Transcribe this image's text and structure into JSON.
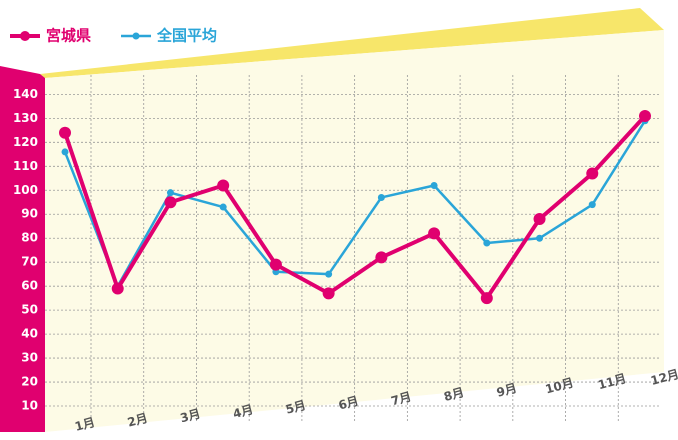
{
  "chart_data": {
    "type": "line",
    "categories": [
      "1月",
      "2月",
      "3月",
      "4月",
      "5月",
      "6月",
      "7月",
      "8月",
      "9月",
      "10月",
      "11月",
      "12月"
    ],
    "series": [
      {
        "name": "宮城県",
        "color": "#e0006f",
        "values": [
          124,
          59,
          95,
          102,
          69,
          57,
          72,
          82,
          55,
          88,
          107,
          131
        ]
      },
      {
        "name": "全国平均",
        "color": "#2aa5d8",
        "values": [
          116,
          60,
          99,
          93,
          66,
          65,
          97,
          102,
          78,
          80,
          94,
          129
        ]
      }
    ],
    "ylim": [
      0,
      146
    ],
    "yticks": [
      10,
      20,
      30,
      40,
      50,
      60,
      70,
      80,
      90,
      100,
      110,
      120,
      130,
      140
    ],
    "grid": true,
    "legend": "top-left"
  }
}
